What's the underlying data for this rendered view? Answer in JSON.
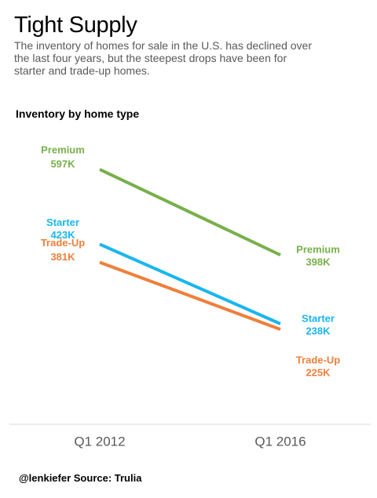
{
  "title": "Tight Supply",
  "subtitle": "The inventory of homes for sale in the U.S. has declined over the last four years, but the steepest drops have been for starter and trade-up homes.",
  "chart_heading": "Inventory by home type",
  "caption": "@lenkiefer Source: Trulia",
  "chart_data": {
    "type": "line",
    "x": [
      "Q1 2012",
      "Q1 2016"
    ],
    "series": [
      {
        "name": "Premium",
        "values": [
          597,
          398
        ],
        "labels": [
          "597K",
          "398K"
        ],
        "color": "#77b04a"
      },
      {
        "name": "Starter",
        "values": [
          423,
          238
        ],
        "labels": [
          "423K",
          "238K"
        ],
        "color": "#19b6ef"
      },
      {
        "name": "Trade-Up",
        "values": [
          381,
          225
        ],
        "labels": [
          "381K",
          "225K"
        ],
        "color": "#f07f3a"
      }
    ],
    "xlabel": "",
    "ylabel": "",
    "grid": false,
    "legend": "none"
  }
}
